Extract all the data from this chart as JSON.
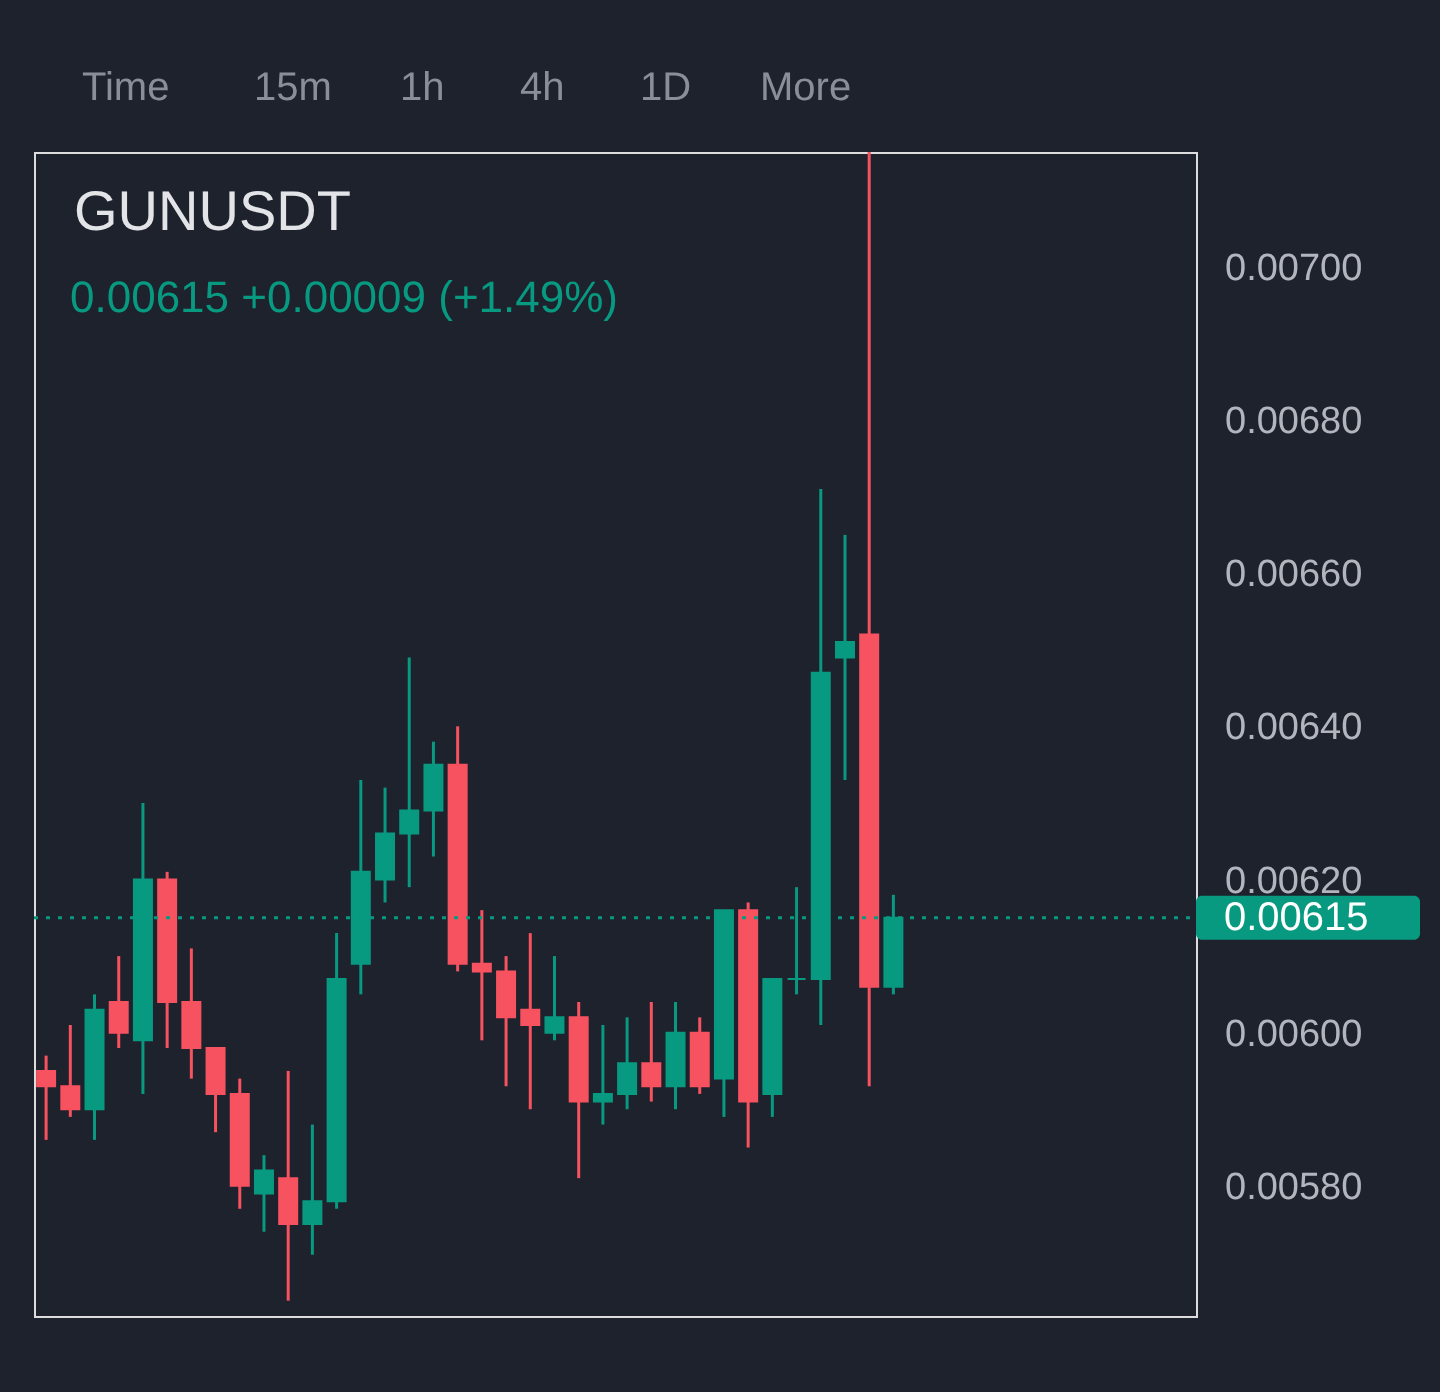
{
  "chart_data": {
    "type": "candlestick",
    "title": "GUNUSDT",
    "subtitle": "0.00615  +0.00009 (+1.49%)",
    "annotations": [
      "Time",
      "15m",
      "1h",
      "4h",
      "1D",
      "More"
    ],
    "categories": [
      null,
      null,
      null,
      null,
      null,
      null,
      null,
      null,
      null,
      null,
      null,
      null,
      null,
      null,
      null,
      null,
      null,
      null,
      null,
      null,
      null,
      null,
      null,
      null,
      null,
      null,
      null,
      null,
      null,
      null,
      null,
      null,
      null,
      null,
      null,
      null,
      null,
      null,
      null,
      null,
      null,
      null,
      null,
      null,
      null,
      null,
      null,
      null
    ],
    "ohlc": [
      [
        0.00595,
        0.00597,
        0.00586,
        0.00593
      ],
      [
        0.00593,
        0.00601,
        0.00589,
        0.0059
      ],
      [
        0.0059,
        0.00605,
        0.00586,
        0.00603
      ],
      [
        0.00604,
        0.0061,
        0.00598,
        0.006
      ],
      [
        0.00599,
        0.0063,
        0.00592,
        0.0062
      ],
      [
        0.0062,
        0.00621,
        0.00598,
        0.00604
      ],
      [
        0.00604,
        0.00611,
        0.00594,
        0.00598
      ],
      [
        0.00598,
        0.00598,
        0.00587,
        0.00592
      ],
      [
        0.00592,
        0.00594,
        0.00577,
        0.0058
      ],
      [
        0.00579,
        0.00584,
        0.00574,
        0.00582
      ],
      [
        0.00581,
        0.00595,
        0.00565,
        0.00575
      ],
      [
        0.00575,
        0.00588,
        0.00571,
        0.00578
      ],
      [
        0.00578,
        0.00613,
        0.00577,
        0.00607
      ],
      [
        0.00609,
        0.00633,
        0.00605,
        0.00621
      ],
      [
        0.0062,
        0.00632,
        0.00617,
        0.00626
      ],
      [
        0.00626,
        0.00649,
        0.00619,
        0.00629
      ],
      [
        0.00629,
        0.00638,
        0.00623,
        0.00635
      ],
      [
        0.00635,
        0.0064,
        0.00608,
        0.00609
      ],
      [
        0.00609,
        0.00616,
        0.00599,
        0.00608
      ],
      [
        0.00608,
        0.0061,
        0.00593,
        0.00602
      ],
      [
        0.00603,
        0.00613,
        0.0059,
        0.00601
      ],
      [
        0.006,
        0.0061,
        0.00599,
        0.00602
      ],
      [
        0.00602,
        0.00604,
        0.00581,
        0.00591
      ],
      [
        0.00591,
        0.00601,
        0.00588,
        0.00592
      ],
      [
        0.00592,
        0.00602,
        0.0059,
        0.00596
      ],
      [
        0.00596,
        0.00604,
        0.00591,
        0.00593
      ],
      [
        0.00593,
        0.00604,
        0.0059,
        0.006
      ],
      [
        0.006,
        0.00602,
        0.00592,
        0.00593
      ],
      [
        0.00594,
        0.00616,
        0.00589,
        0.00616
      ],
      [
        0.00616,
        0.00617,
        0.00585,
        0.00591
      ],
      [
        0.00592,
        0.00607,
        0.00589,
        0.00607
      ],
      [
        0.00607,
        0.00619,
        0.00605,
        0.00607
      ],
      [
        0.00607,
        0.00671,
        0.00601,
        0.00647
      ],
      [
        0.00649,
        0.00665,
        0.00633,
        0.00651
      ],
      [
        0.00652,
        0.00715,
        0.00593,
        0.00606
      ],
      [
        0.00606,
        0.00618,
        0.00605,
        0.00615
      ],
      null,
      null,
      null,
      null,
      null,
      null,
      null,
      null,
      null,
      null,
      null,
      null
    ],
    "colors": [
      "#f7525f",
      "#f7525f",
      "#089981",
      "#f7525f",
      "#089981",
      "#f7525f",
      "#f7525f",
      "#f7525f",
      "#f7525f",
      "#089981",
      "#f7525f",
      "#089981",
      "#089981",
      "#089981",
      "#089981",
      "#089981",
      "#089981",
      "#f7525f",
      "#f7525f",
      "#f7525f",
      "#f7525f",
      "#089981",
      "#f7525f",
      "#089981",
      "#089981",
      "#f7525f",
      "#089981",
      "#f7525f",
      "#089981",
      "#f7525f",
      "#089981",
      "#089981",
      "#089981",
      "#089981",
      "#f7525f",
      "#089981",
      null,
      null,
      null,
      null,
      null,
      null,
      null,
      null,
      null,
      null,
      null,
      null
    ],
    "ylim": [
      0.00563,
      0.00715
    ],
    "yticks": [
      {
        "value": 0.0058,
        "label": "0.00580"
      },
      {
        "value": 0.006,
        "label": "0.00600"
      },
      {
        "value": 0.0062,
        "label": "0.00620"
      },
      {
        "value": 0.0064,
        "label": "0.00640"
      },
      {
        "value": 0.0066,
        "label": "0.00660"
      },
      {
        "value": 0.0068,
        "label": "0.00680"
      },
      {
        "value": 0.007,
        "label": "0.00700"
      }
    ],
    "ref_lines": [
      {
        "axis": "y",
        "value": 0.00615,
        "label": "0.00615",
        "color": "#089981",
        "line_style": "dotted"
      }
    ],
    "tick_labels": "y"
  }
}
